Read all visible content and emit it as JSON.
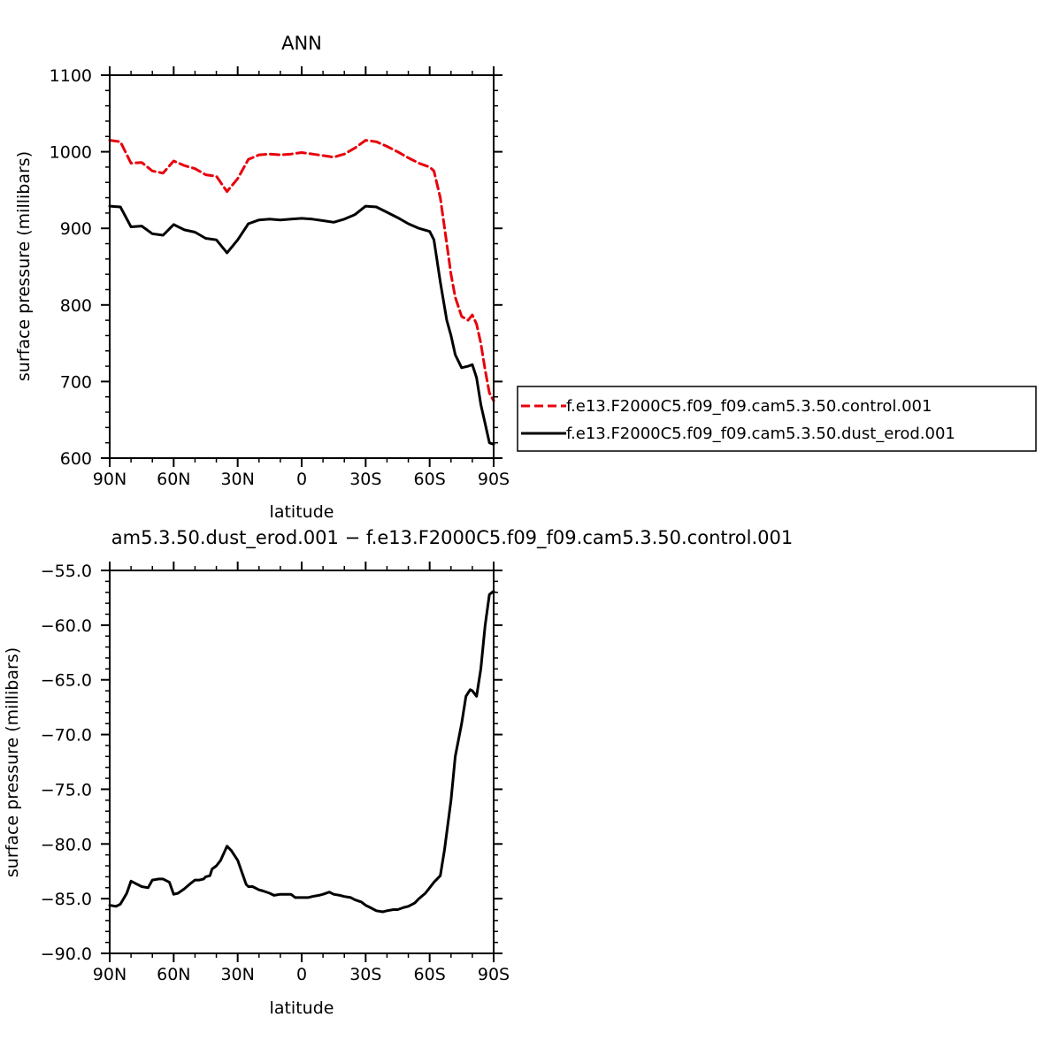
{
  "chart_data": [
    {
      "type": "line",
      "title": "ANN",
      "xlabel": "latitude",
      "ylabel": "surface pressure (millibars)",
      "xlim": [
        90,
        -90
      ],
      "ylim": [
        600,
        1100
      ],
      "xticks": [
        90,
        60,
        30,
        0,
        -30,
        -60,
        -90
      ],
      "xtick_labels": [
        "90N",
        "60N",
        "30N",
        "0",
        "30S",
        "60S",
        "90S"
      ],
      "yticks": [
        600,
        700,
        800,
        900,
        1000,
        1100
      ],
      "ytick_labels": [
        "600",
        "700",
        "800",
        "900",
        "1000",
        "1100"
      ],
      "legend_position": "right",
      "series": [
        {
          "name": "f.e13.F2000C5.f09_f09.cam5.3.50.control.001",
          "color": "#e8000b",
          "dash": "dashed",
          "x": [
            90,
            85,
            80,
            75,
            70,
            65,
            60,
            55,
            50,
            45,
            40,
            35,
            30,
            25,
            20,
            15,
            10,
            5,
            0,
            -5,
            -10,
            -15,
            -20,
            -25,
            -30,
            -35,
            -40,
            -45,
            -50,
            -55,
            -60,
            -62,
            -65,
            -68,
            -70,
            -72,
            -75,
            -78,
            -80,
            -82,
            -84,
            -86,
            -88,
            -90
          ],
          "values": [
            1015,
            1013,
            985,
            986,
            975,
            972,
            988,
            982,
            978,
            970,
            968,
            948,
            965,
            990,
            996,
            997,
            996,
            997,
            999,
            997,
            995,
            993,
            997,
            1005,
            1015,
            1013,
            1007,
            1000,
            992,
            985,
            980,
            975,
            940,
            880,
            840,
            810,
            785,
            780,
            787,
            775,
            750,
            715,
            685,
            675
          ]
        },
        {
          "name": "f.e13.F2000C5.f09_f09.cam5.3.50.dust_erod.001",
          "color": "#000000",
          "dash": "solid",
          "x": [
            90,
            85,
            80,
            75,
            70,
            65,
            60,
            55,
            50,
            45,
            40,
            35,
            30,
            25,
            20,
            15,
            10,
            5,
            0,
            -5,
            -10,
            -15,
            -20,
            -25,
            -30,
            -35,
            -40,
            -45,
            -50,
            -55,
            -60,
            -62,
            -65,
            -68,
            -70,
            -72,
            -75,
            -78,
            -80,
            -82,
            -84,
            -86,
            -88,
            -90
          ],
          "values": [
            929,
            928,
            902,
            903,
            893,
            891,
            905,
            898,
            895,
            887,
            885,
            868,
            885,
            906,
            911,
            912,
            911,
            912,
            913,
            912,
            910,
            908,
            912,
            918,
            929,
            928,
            921,
            914,
            906,
            900,
            896,
            885,
            830,
            780,
            760,
            735,
            718,
            720,
            722,
            705,
            670,
            645,
            620,
            618
          ]
        }
      ]
    },
    {
      "type": "line",
      "title": "am5.3.50.dust_erod.001 − f.e13.F2000C5.f09_f09.cam5.3.50.control.001",
      "xlabel": "latitude",
      "ylabel": "surface pressure (millibars)",
      "xlim": [
        90,
        -90
      ],
      "ylim": [
        -90,
        -55
      ],
      "xticks": [
        90,
        60,
        30,
        0,
        -30,
        -60,
        -90
      ],
      "xtick_labels": [
        "90N",
        "60N",
        "30N",
        "0",
        "30S",
        "60S",
        "90S"
      ],
      "yticks": [
        -90,
        -85,
        -80,
        -75,
        -70,
        -65,
        -60,
        -55
      ],
      "ytick_labels": [
        "−90.0",
        "−85.0",
        "−80.0",
        "−75.0",
        "−70.0",
        "−65.0",
        "−60.0",
        "−55.0"
      ],
      "series": [
        {
          "color": "#000000",
          "dash": "solid",
          "x": [
            90,
            87,
            85,
            82,
            80,
            78,
            75,
            72,
            70,
            67,
            65,
            62,
            60,
            58,
            55,
            52,
            50,
            48,
            46,
            45,
            43,
            42,
            40,
            38,
            35,
            33,
            30,
            28,
            26,
            25,
            23,
            20,
            18,
            15,
            13,
            10,
            8,
            5,
            3,
            0,
            -3,
            -5,
            -8,
            -10,
            -13,
            -15,
            -18,
            -20,
            -23,
            -25,
            -28,
            -30,
            -32,
            -35,
            -38,
            -40,
            -43,
            -45,
            -48,
            -50,
            -53,
            -55,
            -58,
            -60,
            -62,
            -65,
            -67,
            -70,
            -72,
            -75,
            -77,
            -79,
            -80,
            -82,
            -84,
            -86,
            -88,
            -90
          ],
          "values": [
            -85.6,
            -85.7,
            -85.5,
            -84.5,
            -83.4,
            -83.6,
            -83.9,
            -84.0,
            -83.3,
            -83.2,
            -83.2,
            -83.5,
            -84.6,
            -84.5,
            -84.1,
            -83.6,
            -83.3,
            -83.3,
            -83.2,
            -83.0,
            -82.9,
            -82.3,
            -82.0,
            -81.5,
            -80.2,
            -80.6,
            -81.5,
            -82.6,
            -83.7,
            -83.9,
            -83.9,
            -84.2,
            -84.3,
            -84.5,
            -84.7,
            -84.6,
            -84.6,
            -84.6,
            -84.9,
            -84.9,
            -84.9,
            -84.8,
            -84.7,
            -84.6,
            -84.4,
            -84.6,
            -84.7,
            -84.8,
            -84.9,
            -85.1,
            -85.3,
            -85.6,
            -85.8,
            -86.1,
            -86.2,
            -86.1,
            -86.0,
            -86.0,
            -85.8,
            -85.7,
            -85.4,
            -85.0,
            -84.5,
            -84.0,
            -83.5,
            -82.9,
            -80.5,
            -76.0,
            -72.0,
            -69.0,
            -66.5,
            -65.9,
            -66.0,
            -66.5,
            -64.0,
            -60.0,
            -57.2,
            -56.9
          ]
        }
      ]
    }
  ]
}
